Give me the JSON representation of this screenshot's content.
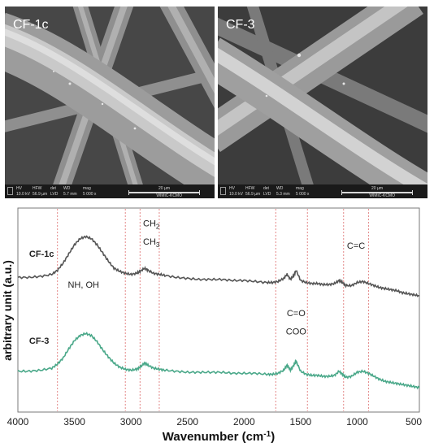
{
  "sem_panels": [
    {
      "label": "CF-1c",
      "info_headers": [
        "HV",
        "HFW",
        "det",
        "WD",
        "mag"
      ],
      "info_values": [
        "10.0 kV",
        "56.9 µm",
        "LVD",
        "5.7 mm",
        "5 000 x"
      ],
      "scale_bar": "20 µm",
      "instrument": "WIMiC-KCMO"
    },
    {
      "label": "CF-3",
      "info_headers": [
        "HV",
        "HFW",
        "det",
        "WD",
        "mag"
      ],
      "info_values": [
        "10.0 kV",
        "56.9 µm",
        "LVD",
        "5.3 mm",
        "5 000 x"
      ],
      "scale_bar": "20 µm",
      "instrument": "WIMiC-KCMO"
    }
  ],
  "chart_data": {
    "type": "line",
    "xlabel": "Wavenumber (cm",
    "xlabel_sup": "-1",
    "xlabel_end": ")",
    "ylabel": "arbitrary unit (a.u.)",
    "xlim": [
      4000,
      450
    ],
    "x_reversed": true,
    "xticks": [
      4000,
      3500,
      3000,
      2500,
      2000,
      1500,
      1000,
      500
    ],
    "xtick_labels": [
      "4000",
      "3500",
      "3000",
      "2500",
      "2000",
      "1500",
      "1000",
      "500"
    ],
    "ylim": [
      0,
      10
    ],
    "grid": false,
    "reference_lines": [
      3650,
      3050,
      2920,
      2750,
      1720,
      1440,
      1120,
      900
    ],
    "annotations": [
      {
        "text": "NH, OH",
        "x": 3420,
        "y": 6.1
      },
      {
        "main": "CH",
        "sub": "2",
        "x": 2820,
        "y": 9.1
      },
      {
        "main": "CH",
        "sub": "3",
        "x": 2820,
        "y": 8.2
      },
      {
        "text": "C=O",
        "x": 1540,
        "y": 4.7
      },
      {
        "text": "COO",
        "x": 1540,
        "y": 3.8
      },
      {
        "text": "C=C",
        "x": 1010,
        "y": 8.0
      }
    ],
    "series": [
      {
        "name": "CF-1c",
        "color": "#555555",
        "label_at": [
          3900,
          7.6
        ],
        "x": [
          4000,
          3900,
          3800,
          3700,
          3650,
          3600,
          3550,
          3500,
          3450,
          3400,
          3350,
          3300,
          3250,
          3200,
          3150,
          3100,
          3050,
          3000,
          2950,
          2920,
          2880,
          2850,
          2800,
          2750,
          2700,
          2600,
          2500,
          2400,
          2300,
          2200,
          2100,
          2000,
          1900,
          1800,
          1750,
          1700,
          1650,
          1620,
          1590,
          1560,
          1540,
          1500,
          1450,
          1400,
          1350,
          1300,
          1250,
          1200,
          1160,
          1130,
          1100,
          1050,
          1000,
          950,
          900,
          850,
          800,
          750,
          700,
          650,
          600,
          550,
          500,
          450
        ],
        "y": [
          6.6,
          6.6,
          6.65,
          6.75,
          6.95,
          7.3,
          7.75,
          8.2,
          8.5,
          8.6,
          8.5,
          8.2,
          7.8,
          7.4,
          7.05,
          6.9,
          6.8,
          6.75,
          6.8,
          6.9,
          7.05,
          6.95,
          6.8,
          6.75,
          6.7,
          6.6,
          6.55,
          6.5,
          6.5,
          6.5,
          6.45,
          6.45,
          6.4,
          6.35,
          6.35,
          6.4,
          6.55,
          6.75,
          6.5,
          6.7,
          6.95,
          6.45,
          6.35,
          6.3,
          6.3,
          6.25,
          6.25,
          6.3,
          6.45,
          6.35,
          6.2,
          6.2,
          6.35,
          6.4,
          6.3,
          6.2,
          6.1,
          6.05,
          6.0,
          5.95,
          5.85,
          5.8,
          5.75,
          5.7
        ]
      },
      {
        "name": "CF-3",
        "color": "#4aa889",
        "label_at": [
          3900,
          3.35
        ],
        "x": [
          4000,
          3900,
          3800,
          3700,
          3650,
          3600,
          3550,
          3500,
          3450,
          3400,
          3350,
          3300,
          3250,
          3200,
          3150,
          3100,
          3050,
          3000,
          2950,
          2920,
          2880,
          2850,
          2800,
          2750,
          2700,
          2600,
          2500,
          2400,
          2300,
          2200,
          2100,
          2000,
          1900,
          1800,
          1750,
          1700,
          1650,
          1620,
          1590,
          1560,
          1540,
          1500,
          1450,
          1400,
          1350,
          1300,
          1250,
          1200,
          1160,
          1130,
          1100,
          1050,
          1000,
          950,
          900,
          850,
          800,
          750,
          700,
          650,
          600,
          550,
          500,
          450
        ],
        "y": [
          2.0,
          2.0,
          2.05,
          2.15,
          2.35,
          2.65,
          3.1,
          3.5,
          3.75,
          3.85,
          3.75,
          3.45,
          3.05,
          2.7,
          2.4,
          2.2,
          2.1,
          2.05,
          2.1,
          2.2,
          2.4,
          2.3,
          2.15,
          2.1,
          2.05,
          2.0,
          1.95,
          1.95,
          1.95,
          1.95,
          1.9,
          1.9,
          1.9,
          1.85,
          1.85,
          1.9,
          2.05,
          2.3,
          2.05,
          2.3,
          2.5,
          2.0,
          1.85,
          1.8,
          1.8,
          1.75,
          1.75,
          1.8,
          2.0,
          1.85,
          1.7,
          1.75,
          1.95,
          2.0,
          1.9,
          1.75,
          1.6,
          1.5,
          1.45,
          1.4,
          1.35,
          1.3,
          1.25,
          1.2
        ]
      }
    ]
  }
}
